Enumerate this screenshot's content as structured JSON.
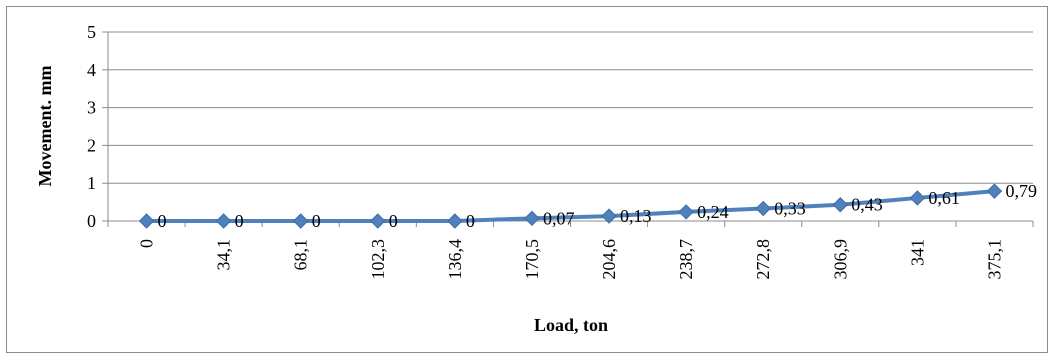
{
  "chart_data": {
    "type": "line",
    "title": "",
    "xlabel": "Load, ton",
    "ylabel": "Movement. mm",
    "categories": [
      "0",
      "34,1",
      "68,1",
      "102,3",
      "136,4",
      "170,5",
      "204,6",
      "238,7",
      "272,8",
      "306,9",
      "341",
      "375,1"
    ],
    "series": [
      {
        "values": [
          0,
          0,
          0,
          0,
          0,
          0.07,
          0.13,
          0.24,
          0.33,
          0.43,
          0.61,
          0.79
        ],
        "labels": [
          "0",
          "0",
          "0",
          "0",
          "0",
          "0,07",
          "0,13",
          "0,24",
          "0,33",
          "0,43",
          "0,61",
          "0,79"
        ]
      }
    ],
    "y_ticks": [
      "0",
      "1",
      "2",
      "3",
      "4",
      "5"
    ],
    "ylim": [
      0,
      5
    ],
    "grid": "horizontal",
    "legend": "none",
    "colors": {
      "series": "#4f81bd",
      "grid": "#8c8c8c",
      "axis": "#8c8c8c"
    }
  }
}
